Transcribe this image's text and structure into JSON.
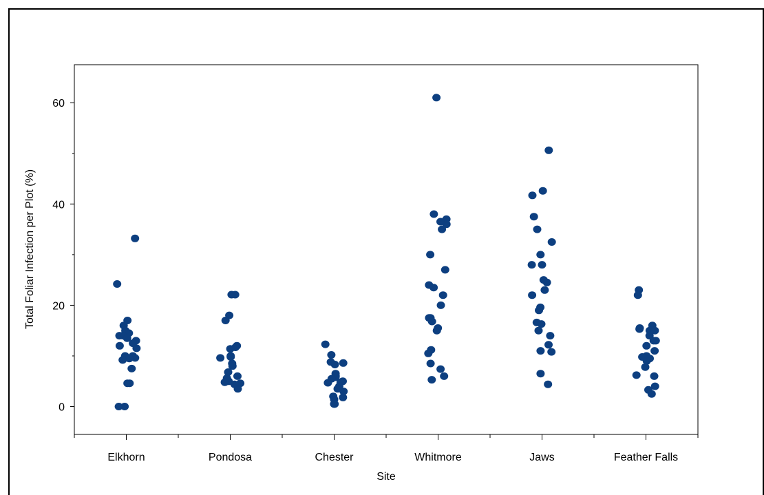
{
  "chart_data": {
    "type": "scatter",
    "title": "",
    "xlabel": "Site",
    "ylabel": "Total Foliar Infection per Plot (%)",
    "categories": [
      "Elkhorn",
      "Pondosa",
      "Chester",
      "Whitmore",
      "Jaws",
      "Feather Falls"
    ],
    "ylim": [
      -5.5,
      67.5
    ],
    "yticks": [
      0,
      20,
      40,
      60
    ],
    "grid": false,
    "marker_color": "#0d3f80",
    "points": [
      {
        "site": "Elkhorn",
        "values": [
          33.2,
          24.2,
          17.0,
          16.0,
          15.0,
          14.5,
          14.0,
          14.0,
          13.5,
          13.0,
          12.5,
          12.0,
          11.5,
          10.0,
          10.0,
          9.6,
          9.6,
          9.5,
          9.2,
          7.5,
          4.6,
          4.6,
          0.0,
          0.0
        ]
      },
      {
        "site": "Pondosa",
        "values": [
          22.1,
          22.1,
          18.0,
          17.0,
          12.0,
          11.7,
          11.4,
          10.0,
          9.8,
          9.6,
          8.5,
          8.0,
          6.8,
          6.0,
          5.6,
          5.0,
          4.8,
          4.6,
          4.4,
          3.5
        ]
      },
      {
        "site": "Chester",
        "values": [
          12.3,
          10.2,
          8.8,
          8.6,
          8.3,
          6.5,
          6.0,
          6.0,
          5.8,
          5.5,
          5.0,
          4.8,
          4.7,
          4.0,
          3.5,
          3.0,
          2.0,
          1.8,
          1.4,
          0.5,
          0.5
        ]
      },
      {
        "site": "Whitmore",
        "values": [
          61.0,
          38.0,
          37.0,
          36.5,
          36.0,
          35.0,
          30.0,
          27.0,
          24.0,
          23.5,
          22.0,
          20.0,
          17.5,
          17.5,
          16.8,
          15.5,
          15.0,
          11.2,
          10.5,
          8.5,
          7.4,
          6.0,
          5.3
        ]
      },
      {
        "site": "Jaws",
        "values": [
          50.6,
          42.6,
          41.7,
          37.5,
          35.0,
          32.5,
          30.0,
          28.0,
          28.0,
          25.0,
          24.5,
          23.0,
          22.0,
          19.6,
          19.0,
          16.6,
          16.3,
          15.0,
          14.0,
          12.2,
          11.0,
          10.8,
          6.5,
          4.4
        ]
      },
      {
        "site": "Feather Falls",
        "values": [
          23.0,
          22.0,
          16.0,
          15.5,
          15.3,
          15.0,
          15.0,
          14.0,
          13.0,
          13.0,
          12.0,
          11.0,
          10.0,
          9.8,
          9.5,
          9.0,
          7.8,
          6.2,
          6.0,
          4.0,
          3.3,
          2.5
        ]
      }
    ]
  }
}
